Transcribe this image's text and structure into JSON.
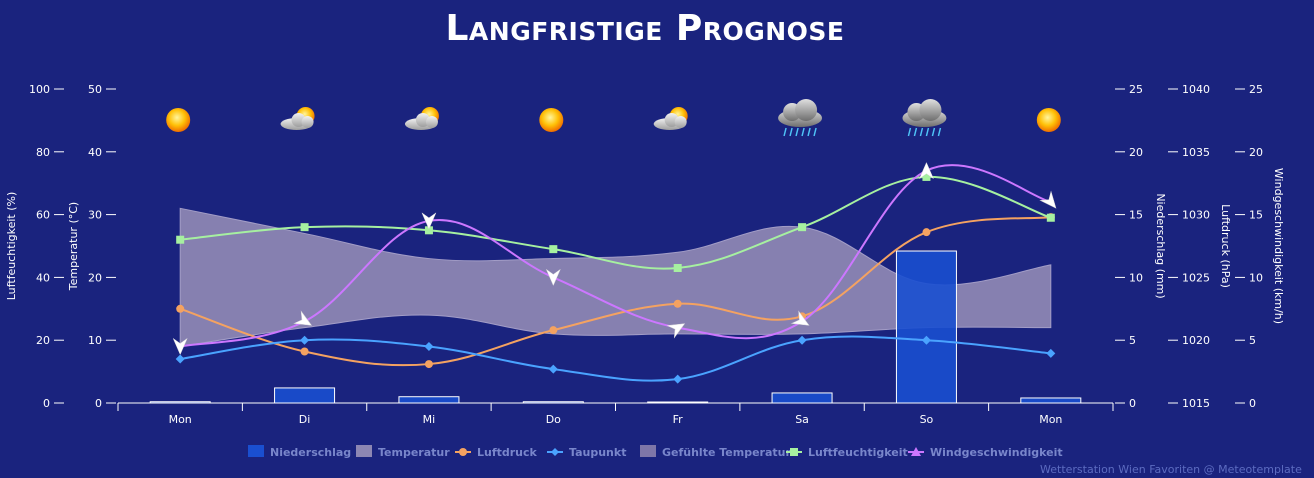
{
  "title": "Langfristige Prognose",
  "credit": "Wetterstation Wien Favoriten @ Meteotemplate",
  "colors": {
    "background": "#1a237e",
    "precip": "#1a4fd0",
    "temp_band": "#8c86b3",
    "pressure": "#f4a261",
    "dewpoint": "#4aa3ff",
    "humidity": "#a6f0a0",
    "wind": "#cc77ff"
  },
  "chart_data": {
    "type": "line",
    "categories": [
      "Mon",
      "Di",
      "Mi",
      "Do",
      "Fr",
      "Sa",
      "So",
      "Mon"
    ],
    "weather_icons": [
      "sun-icon",
      "partly-cloudy-icon",
      "partly-cloudy-icon",
      "sun-icon",
      "partly-cloudy-icon",
      "rain-cloud-icon",
      "rain-cloud-icon",
      "sun-icon"
    ],
    "axes": [
      {
        "label": "Luftfeuchtigkeit (%)",
        "side": "left",
        "min": 0,
        "max": 100,
        "ticks": [
          "0",
          "20",
          "40",
          "60",
          "80",
          "100"
        ]
      },
      {
        "label": "Temperatur (°C)",
        "side": "left",
        "min": 0,
        "max": 50,
        "ticks": [
          "0",
          "10",
          "20",
          "30",
          "40",
          "50"
        ]
      },
      {
        "label": "Niederschlag (mm)",
        "side": "right",
        "min": 0,
        "max": 25,
        "ticks": [
          "0",
          "5",
          "10",
          "15",
          "20",
          "25"
        ]
      },
      {
        "label": "Luftdruck (hPa)",
        "side": "right",
        "min": 1015,
        "max": 1040,
        "ticks": [
          "1015",
          "1020",
          "1025",
          "1030",
          "1035",
          "1040"
        ]
      },
      {
        "label": "Windgeschwindigkeit (km/h)",
        "side": "right",
        "min": 0,
        "max": 25,
        "ticks": [
          "0",
          "5",
          "10",
          "15",
          "20",
          "25"
        ]
      }
    ],
    "series": [
      {
        "name": "Niederschlag",
        "type": "bar",
        "axis": 2,
        "values": [
          0.1,
          1.2,
          0.5,
          0.1,
          0,
          0.8,
          12.1,
          0.4
        ]
      },
      {
        "name": "Temperatur",
        "type": "arearange",
        "axis": 1,
        "low": [
          9,
          12,
          14,
          11,
          11,
          11,
          12,
          12
        ],
        "high": [
          31,
          27,
          23,
          23,
          24,
          28,
          19,
          22
        ]
      },
      {
        "name": "Luftdruck",
        "type": "line",
        "axis": 3,
        "values": [
          1022.5,
          1019.1,
          1018.1,
          1020.8,
          1022.9,
          1021.9,
          1028.6,
          1029.8
        ]
      },
      {
        "name": "Taupunkt",
        "type": "line",
        "axis": 1,
        "values": [
          7,
          10,
          9,
          5.4,
          3.8,
          10,
          10,
          7.9
        ]
      },
      {
        "name": "Gefühlte Temperatur",
        "type": "arearange",
        "axis": 1,
        "low": [
          9,
          12,
          14,
          11,
          11,
          11,
          12,
          12
        ],
        "high": [
          31,
          27,
          23,
          23,
          24,
          28,
          19,
          22
        ]
      },
      {
        "name": "Luftfeuchtigkeit",
        "type": "line",
        "axis": 0,
        "values": [
          52,
          56,
          55,
          49,
          43,
          56,
          72,
          59
        ]
      },
      {
        "name": "Windgeschwindigkeit",
        "type": "line",
        "axis": 4,
        "values": [
          4.5,
          6.5,
          14.5,
          10,
          6,
          6.5,
          18.5,
          16
        ]
      }
    ],
    "legend_position": "bottom"
  }
}
